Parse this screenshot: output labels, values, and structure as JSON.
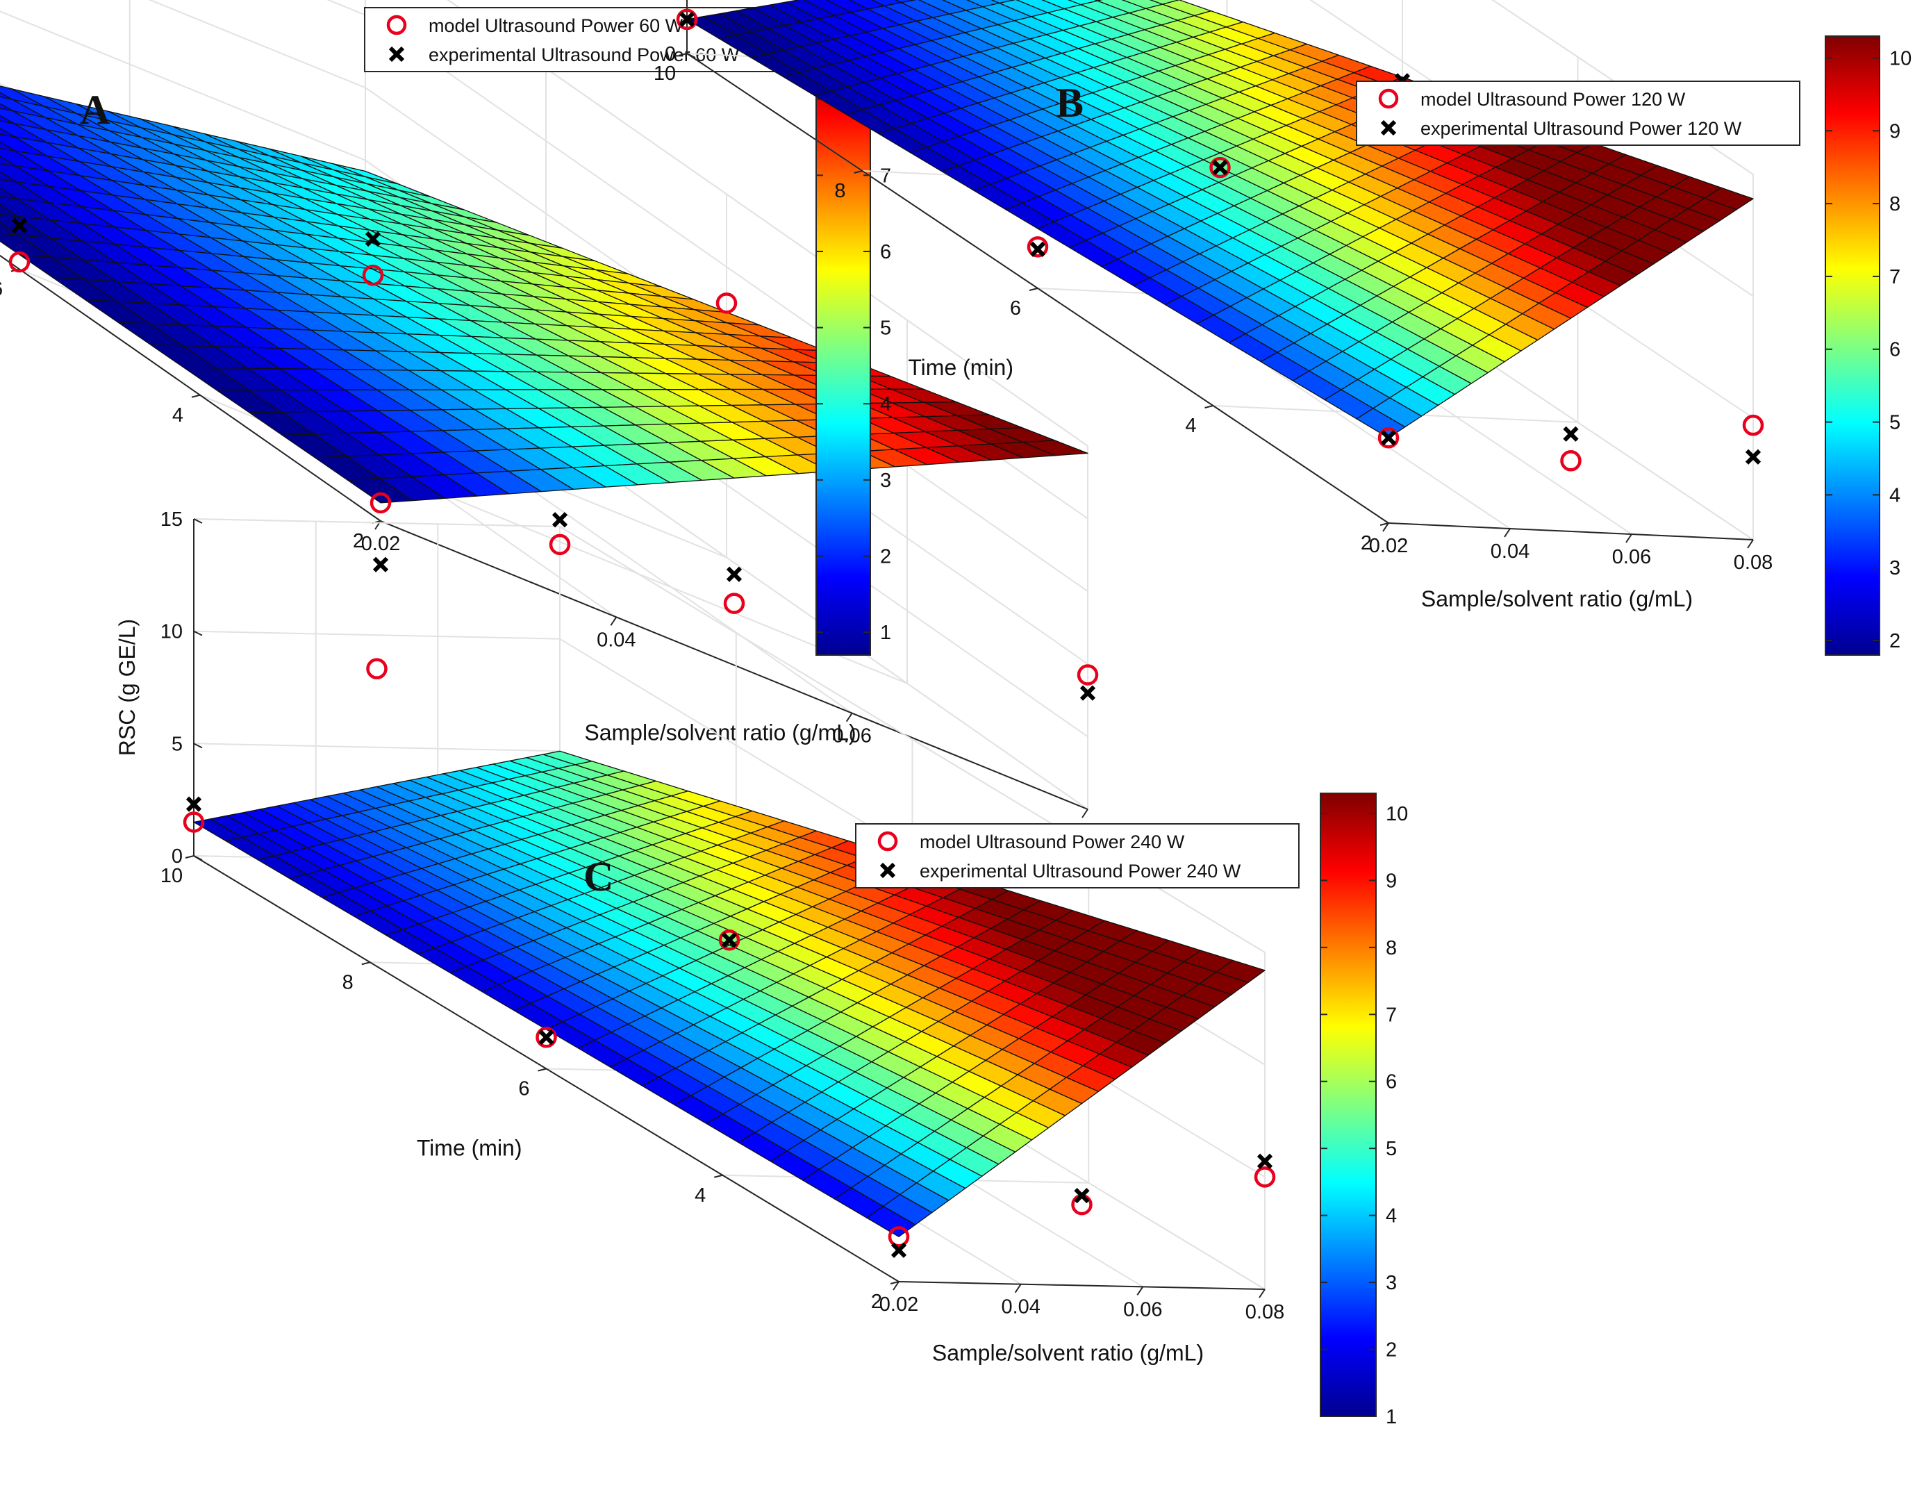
{
  "figure_title": "Response surfaces of RSC vs time and sample/solvent ratio at three ultrasound powers",
  "colormap": [
    "#00008f",
    "#0000ff",
    "#0080ff",
    "#00ffff",
    "#80ff80",
    "#ffff00",
    "#ff8000",
    "#ff0000",
    "#800000"
  ],
  "marker_colors": {
    "model": "#e8001c",
    "experimental": "#000000"
  },
  "chart_data": [
    {
      "panel": "A",
      "type": "surface3d",
      "xlabel": "Sample/solvent ratio (g/mL)",
      "ylabel": "Time (min)",
      "zlabel": "RSC (g GE/L)",
      "x_ticks": [
        "0.02",
        "0.04",
        "0.06",
        "0.08"
      ],
      "y_ticks": [
        "2",
        "4",
        "6",
        "8",
        "10"
      ],
      "z_ticks": [
        "0",
        "2",
        "4",
        "6",
        "8",
        "10"
      ],
      "xlim": [
        0.02,
        0.08
      ],
      "ylim": [
        2,
        10
      ],
      "zlim": [
        0,
        10
      ],
      "corners": {
        "x_min_t_max": 0.3,
        "x_min_t_min": 0.5,
        "x_max_t_max": 3.7,
        "x_max_t_min": 9.8
      },
      "colorbar": {
        "min": 0.7,
        "max": 8.8,
        "ticks": [
          "1",
          "2",
          "3",
          "4",
          "5",
          "6",
          "7",
          "8"
        ]
      },
      "legend": {
        "model": "model Ultrasound Power 60 W",
        "experimental": "experimental Ultrasound Power 60 W"
      },
      "model_points": [
        {
          "x": 0.02,
          "t": 10,
          "z": 0.3
        },
        {
          "x": 0.02,
          "t": 6,
          "z": 0.2
        },
        {
          "x": 0.02,
          "t": 2,
          "z": 0.5
        },
        {
          "x": 0.05,
          "t": 10,
          "z": 6.5
        },
        {
          "x": 0.05,
          "t": 6,
          "z": 3.8
        },
        {
          "x": 0.05,
          "t": 2,
          "z": 1.7
        },
        {
          "x": 0.08,
          "t": 10,
          "z": 9.8
        },
        {
          "x": 0.08,
          "t": 6,
          "z": 7.0
        },
        {
          "x": 0.08,
          "t": 2,
          "z": 3.7
        }
      ],
      "experimental_points": [
        {
          "x": 0.02,
          "t": 10,
          "z": 0.3
        },
        {
          "x": 0.02,
          "t": 6,
          "z": 1.2
        },
        {
          "x": 0.02,
          "t": 2,
          "z": -1.2
        },
        {
          "x": 0.05,
          "t": 6,
          "z": 4.8
        },
        {
          "x": 0.05,
          "t": 2,
          "z": 2.5
        },
        {
          "x": 0.08,
          "t": 10,
          "z": 10.7
        },
        {
          "x": 0.08,
          "t": 2,
          "z": 3.2
        }
      ]
    },
    {
      "panel": "B",
      "type": "surface3d",
      "xlabel": "Sample/solvent ratio (g/mL)",
      "ylabel": "Time (min)",
      "zlabel": "RSC (g GE/L)",
      "x_ticks": [
        "0.02",
        "0.04",
        "0.06",
        "0.08"
      ],
      "y_ticks": [
        "2",
        "4",
        "6",
        "8",
        "10"
      ],
      "z_ticks": [
        "0",
        "5",
        "10",
        "15"
      ],
      "xlim": [
        0.02,
        0.08
      ],
      "ylim": [
        2,
        10
      ],
      "zlim": [
        0,
        15
      ],
      "corners": {
        "x_min_t_max": 1.4,
        "x_min_t_min": 3.5,
        "x_max_t_max": 4.7,
        "x_max_t_min": 14.0
      },
      "colorbar": {
        "min": 1.8,
        "max": 10.3,
        "ticks": [
          "2",
          "3",
          "4",
          "5",
          "6",
          "7",
          "8",
          "9",
          "10"
        ]
      },
      "legend": {
        "model": "model Ultrasound Power 120 W",
        "experimental": "experimental Ultrasound Power 120 W"
      },
      "model_points": [
        {
          "x": 0.02,
          "t": 10,
          "z": 1.4
        },
        {
          "x": 0.02,
          "t": 6,
          "z": 1.7
        },
        {
          "x": 0.02,
          "t": 2,
          "z": 3.5
        },
        {
          "x": 0.05,
          "t": 10,
          "z": 7.8
        },
        {
          "x": 0.05,
          "t": 6,
          "z": 5.3
        },
        {
          "x": 0.05,
          "t": 2,
          "z": 2.9
        },
        {
          "x": 0.08,
          "t": 10,
          "z": 14.0
        },
        {
          "x": 0.08,
          "t": 6,
          "z": 8.6
        },
        {
          "x": 0.08,
          "t": 2,
          "z": 4.7
        }
      ],
      "experimental_points": [
        {
          "x": 0.02,
          "t": 10,
          "z": 1.4
        },
        {
          "x": 0.02,
          "t": 6,
          "z": 1.6
        },
        {
          "x": 0.02,
          "t": 2,
          "z": 3.5
        },
        {
          "x": 0.05,
          "t": 6,
          "z": 5.3
        },
        {
          "x": 0.05,
          "t": 2,
          "z": 4.0
        },
        {
          "x": 0.08,
          "t": 10,
          "z": 14.0
        },
        {
          "x": 0.08,
          "t": 6,
          "z": 9.2
        },
        {
          "x": 0.08,
          "t": 2,
          "z": 3.4
        }
      ]
    },
    {
      "panel": "C",
      "type": "surface3d",
      "xlabel": "Sample/solvent ratio (g/mL)",
      "ylabel": "Time (min)",
      "zlabel": "RSC (g GE/L)",
      "x_ticks": [
        "0.02",
        "0.04",
        "0.06",
        "0.08"
      ],
      "y_ticks": [
        "2",
        "4",
        "6",
        "8",
        "10"
      ],
      "z_ticks": [
        "0",
        "5",
        "10",
        "15"
      ],
      "xlim": [
        0.02,
        0.08
      ],
      "ylim": [
        2,
        10
      ],
      "zlim": [
        0,
        15
      ],
      "corners": {
        "x_min_t_max": 1.5,
        "x_min_t_min": 2.0,
        "x_max_t_max": 5.0,
        "x_max_t_min": 14.2
      },
      "colorbar": {
        "min": 1.0,
        "max": 10.3,
        "ticks": [
          "1",
          "2",
          "3",
          "4",
          "5",
          "6",
          "7",
          "8",
          "9",
          "10"
        ]
      },
      "legend": {
        "model": "model Ultrasound Power 240 W",
        "experimental": "experimental Ultrasound Power 240 W"
      },
      "model_points": [
        {
          "x": 0.02,
          "t": 10,
          "z": 1.5
        },
        {
          "x": 0.02,
          "t": 6,
          "z": 1.4
        },
        {
          "x": 0.02,
          "t": 2,
          "z": 2.0
        },
        {
          "x": 0.05,
          "t": 10,
          "z": 8.5
        },
        {
          "x": 0.05,
          "t": 6,
          "z": 5.9
        },
        {
          "x": 0.05,
          "t": 2,
          "z": 3.6
        },
        {
          "x": 0.08,
          "t": 10,
          "z": 14.2
        },
        {
          "x": 0.08,
          "t": 6,
          "z": 9.6
        },
        {
          "x": 0.08,
          "t": 2,
          "z": 5.0
        }
      ],
      "experimental_points": [
        {
          "x": 0.02,
          "t": 10,
          "z": 2.3
        },
        {
          "x": 0.02,
          "t": 6,
          "z": 1.4
        },
        {
          "x": 0.02,
          "t": 2,
          "z": 1.4
        },
        {
          "x": 0.05,
          "t": 6,
          "z": 5.9
        },
        {
          "x": 0.05,
          "t": 2,
          "z": 4.0
        },
        {
          "x": 0.08,
          "t": 10,
          "z": 15.3
        },
        {
          "x": 0.08,
          "t": 2,
          "z": 5.7
        }
      ]
    }
  ]
}
